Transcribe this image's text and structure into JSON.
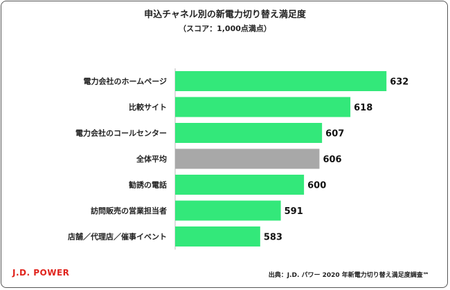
{
  "title": "申込チャネル別の新電力切り替え満足度",
  "subtitle": "（スコア：1,000点満点）",
  "chart_data": {
    "type": "bar",
    "orientation": "horizontal",
    "categories": [
      "電力会社のホームページ",
      "比較サイト",
      "電力会社のコールセンター",
      "全体平均",
      "勧誘の電話",
      "訪問販売の営業担当者",
      "店舗／代理店／催事イベント"
    ],
    "values": [
      632,
      618,
      607,
      606,
      600,
      591,
      583
    ],
    "xlim": [
      550,
      640
    ],
    "grid": false,
    "colors": {
      "default": "#33e87a",
      "average": "#a8a8a8"
    },
    "highlight_category": "全体平均"
  },
  "footer": {
    "logo": "J.D. POWER",
    "source": "出典：J.D. パワー 2020 年新電力切り替え満足度調査℠"
  },
  "colors": {
    "logo": "#e0231c",
    "axis": "#bbbbbb"
  }
}
